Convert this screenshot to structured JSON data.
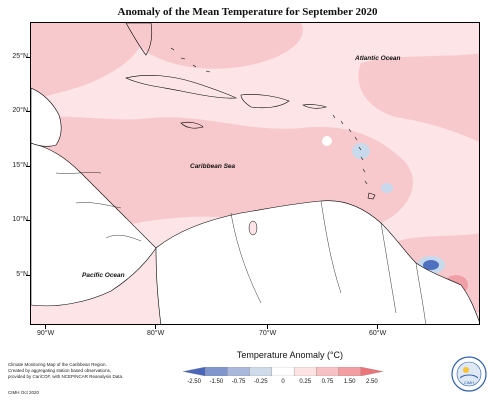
{
  "title": "Anomaly of the Mean Temperature for September 2020",
  "latitude_labels": [
    "25°N",
    "20°N",
    "15°N",
    "10°N",
    "5°N"
  ],
  "longitude_labels": [
    "90°W",
    "80°W",
    "70°W",
    "60°W"
  ],
  "places": {
    "atlantic": "Atlantic Ocean",
    "caribbean": "Caribbean Sea",
    "pacific": "Pacific Ocean"
  },
  "credit": {
    "line1": "Climate Monitoring Map of the Caribbean Region.",
    "line2": "Created by aggregating station based observations,",
    "line3": "provided by CariCOF, with NCEP/NCAR Reanalysis Data.",
    "code": "CIMH Oct 2020"
  },
  "legend": {
    "title": "Temperature Anomaly (°C)",
    "ticks": [
      "-2.50",
      "-1.50",
      "-0.75",
      "-0.25",
      "0",
      "0.25",
      "0.75",
      "1.50",
      "2.50"
    ],
    "colors": [
      "#4a66b8",
      "#7f95cc",
      "#a9b8db",
      "#cfdaea",
      "#ffffff",
      "#fde3e3",
      "#f8c2c4",
      "#f29ea3",
      "#ec7478"
    ]
  },
  "logo": {
    "text": "CIMH"
  },
  "colors": {
    "warm_light": "#fde4e6",
    "warm_medium": "#f7c9cc",
    "warm_strong": "#ef9fa5",
    "cool_light": "#c9d9ec",
    "cool_strong": "#4f6fc0"
  }
}
